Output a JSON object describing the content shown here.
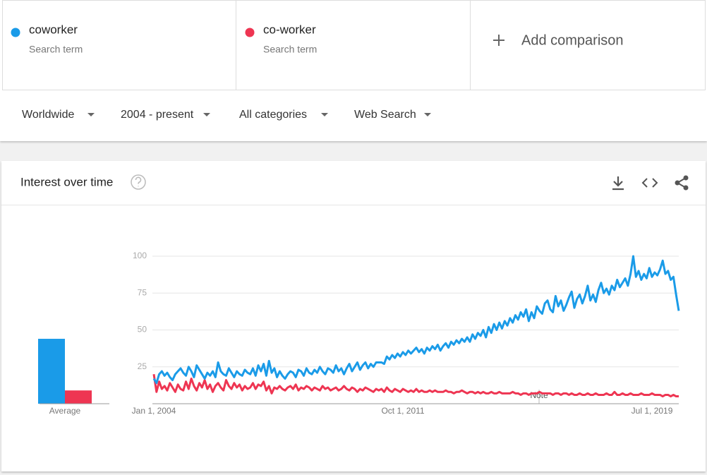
{
  "terms": [
    {
      "name": "coworker",
      "subtitle": "Search term",
      "color": "#1a9be8"
    },
    {
      "name": "co-worker",
      "subtitle": "Search term",
      "color": "#ee3552"
    }
  ],
  "add_comparison": "Add comparison",
  "filters": [
    "Worldwide",
    "2004 - present",
    "All categories",
    "Web Search"
  ],
  "panel": {
    "title": "Interest over time"
  },
  "chart_data": [
    {
      "type": "bar",
      "categories": [
        "Average"
      ],
      "ylim": [
        0,
        100
      ],
      "series": [
        {
          "color": "#1a9be8",
          "values": [
            44
          ]
        },
        {
          "color": "#ee3552",
          "values": [
            9
          ]
        }
      ]
    },
    {
      "type": "line",
      "ylim": [
        0,
        100
      ],
      "yticks": [
        25,
        50,
        75,
        100
      ],
      "grid": true,
      "note": "Note",
      "categories": [
        "Jan 1, 2004",
        null,
        null,
        null,
        null,
        null,
        null,
        null,
        null,
        null,
        null,
        null,
        null,
        null,
        null,
        null,
        null,
        null,
        null,
        null,
        null,
        null,
        null,
        null,
        null,
        null,
        null,
        null,
        null,
        null,
        null,
        null,
        null,
        null,
        null,
        null,
        null,
        null,
        null,
        null,
        null,
        null,
        null,
        null,
        null,
        null,
        null,
        null,
        null,
        null,
        null,
        null,
        null,
        null,
        null,
        null,
        null,
        null,
        null,
        null,
        null,
        null,
        null,
        null,
        null,
        null,
        null,
        null,
        null,
        null,
        null,
        null,
        null,
        null,
        null,
        null,
        null,
        null,
        null,
        null,
        null,
        null,
        null,
        null,
        null,
        null,
        null,
        null,
        null,
        null,
        null,
        null,
        null,
        "Oct 1, 2011",
        null,
        null,
        null,
        null,
        null,
        null,
        null,
        null,
        null,
        null,
        null,
        null,
        null,
        null,
        null,
        null,
        null,
        null,
        null,
        null,
        null,
        null,
        null,
        null,
        null,
        null,
        null,
        null,
        null,
        null,
        null,
        null,
        null,
        null,
        null,
        null,
        null,
        null,
        null,
        null,
        null,
        null,
        null,
        null,
        null,
        null,
        null,
        null,
        null,
        null,
        null,
        null,
        null,
        null,
        null,
        null,
        null,
        null,
        null,
        null,
        null,
        null,
        null,
        null,
        null,
        null,
        null,
        null,
        null,
        null,
        null,
        null,
        null,
        null,
        null,
        null,
        null,
        null,
        null,
        null,
        null,
        null,
        null,
        null,
        null,
        null,
        null,
        null,
        null,
        null,
        null,
        null,
        "Jul 1, 2019",
        null,
        null,
        null,
        null,
        null,
        null,
        null,
        null,
        null,
        null
      ],
      "series": [
        {
          "color": "#ee3552",
          "values": [
            20,
            8,
            15,
            10,
            12,
            9,
            14,
            11,
            8,
            13,
            10,
            9,
            15,
            10,
            17,
            12,
            9,
            14,
            11,
            16,
            10,
            13,
            8,
            12,
            14,
            11,
            9,
            16,
            12,
            10,
            14,
            11,
            13,
            9,
            12,
            10,
            11,
            14,
            10,
            13,
            12,
            15,
            9,
            12,
            7,
            11,
            10,
            12,
            10,
            9,
            11,
            12,
            10,
            13,
            9,
            11,
            10,
            12,
            11,
            9,
            11,
            10,
            9,
            12,
            10,
            11,
            9,
            10,
            11,
            9,
            10,
            12,
            10,
            9,
            11,
            10,
            8,
            10,
            9,
            11,
            10,
            9,
            8,
            10,
            9,
            10,
            8,
            11,
            9,
            8,
            10,
            9,
            8,
            10,
            9,
            8,
            9,
            8,
            10,
            8,
            9,
            8,
            8,
            9,
            8,
            9,
            8,
            8,
            8,
            9,
            8,
            8,
            7,
            8,
            8,
            9,
            8,
            7,
            8,
            8,
            7,
            8,
            7,
            8,
            7,
            7,
            8,
            7,
            7,
            8,
            7,
            7,
            7,
            7,
            8,
            7,
            7,
            6,
            7,
            7,
            6,
            7,
            7,
            7,
            8,
            7,
            7,
            7,
            7,
            6,
            7,
            7,
            6,
            7,
            7,
            6,
            7,
            6,
            6,
            7,
            6,
            6,
            7,
            6,
            6,
            7,
            6,
            6,
            6,
            7,
            6,
            6,
            8,
            6,
            6,
            7,
            6,
            6,
            7,
            6,
            6,
            6,
            7,
            6,
            6,
            6,
            7,
            6,
            6,
            6,
            5,
            6,
            6,
            5,
            6,
            5,
            5
          ]
        },
        {
          "color": "#1a9be8",
          "values": [
            17,
            14,
            20,
            22,
            19,
            21,
            18,
            16,
            20,
            22,
            24,
            21,
            19,
            25,
            22,
            18,
            26,
            23,
            20,
            17,
            21,
            19,
            22,
            18,
            28,
            22,
            20,
            19,
            24,
            21,
            18,
            22,
            20,
            19,
            23,
            21,
            20,
            24,
            19,
            26,
            22,
            27,
            19,
            29,
            21,
            24,
            18,
            22,
            19,
            17,
            20,
            22,
            21,
            18,
            23,
            22,
            19,
            24,
            21,
            20,
            23,
            21,
            25,
            22,
            20,
            24,
            23,
            21,
            26,
            22,
            24,
            20,
            24,
            27,
            22,
            25,
            28,
            23,
            26,
            28,
            24,
            27,
            25,
            28,
            28,
            28,
            27,
            32,
            30,
            33,
            31,
            34,
            32,
            35,
            33,
            36,
            34,
            36,
            38,
            35,
            37,
            34,
            38,
            36,
            39,
            37,
            40,
            36,
            39,
            41,
            38,
            42,
            40,
            43,
            41,
            44,
            42,
            45,
            42,
            47,
            44,
            48,
            46,
            50,
            45,
            52,
            48,
            54,
            50,
            55,
            51,
            56,
            53,
            58,
            55,
            60,
            57,
            62,
            59,
            64,
            56,
            62,
            58,
            66,
            63,
            61,
            68,
            70,
            64,
            62,
            73,
            66,
            70,
            63,
            67,
            72,
            76,
            65,
            71,
            74,
            68,
            73,
            80,
            70,
            74,
            69,
            77,
            82,
            75,
            78,
            74,
            80,
            77,
            84,
            79,
            82,
            85,
            80,
            88,
            100,
            86,
            90,
            84,
            88,
            85,
            92,
            86,
            89,
            87,
            91,
            97,
            88,
            90,
            84,
            86,
            74,
            63
          ]
        }
      ]
    }
  ]
}
